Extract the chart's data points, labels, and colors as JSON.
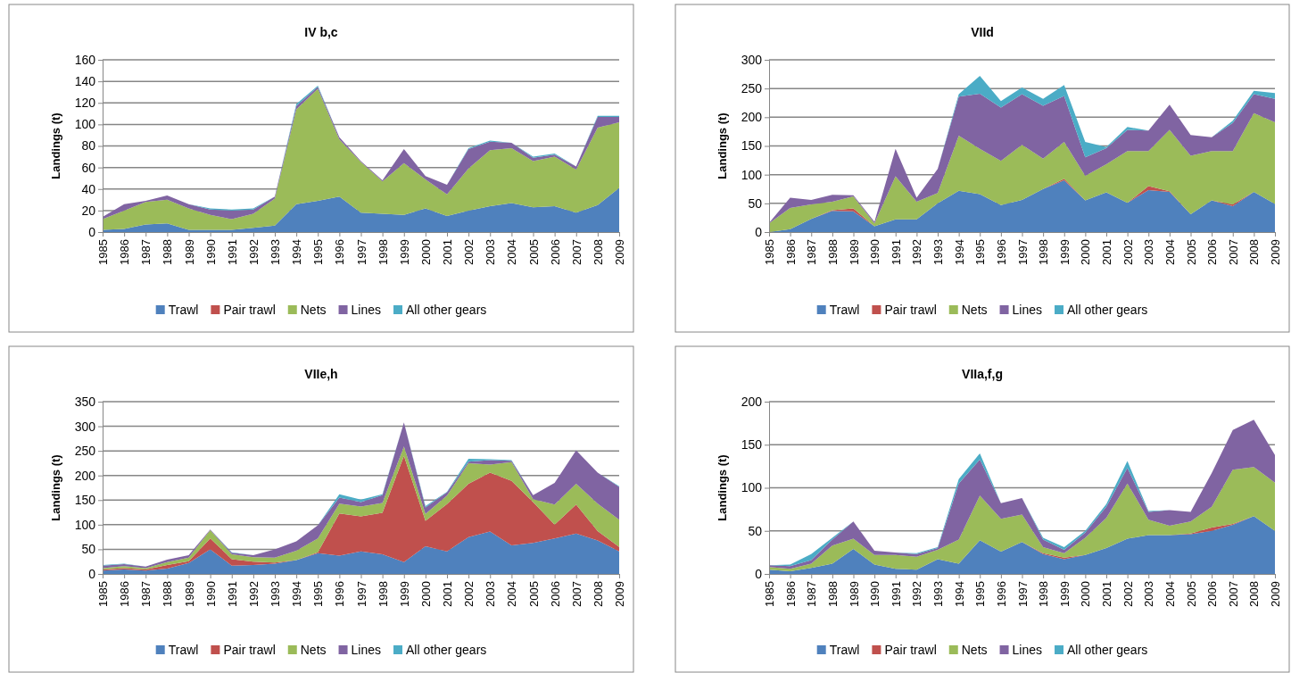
{
  "chart_data": [
    {
      "type": "area",
      "stacked": true,
      "title": "IV b,c",
      "ylabel": "Landings (t)",
      "legend": "bottom",
      "grid": "y",
      "ylim": [
        0,
        160
      ],
      "yticks": [
        0,
        20,
        40,
        60,
        80,
        100,
        120,
        140,
        160
      ],
      "categories": [
        "1985",
        "1986",
        "1987",
        "1988",
        "1989",
        "1990",
        "1991",
        "1992",
        "1993",
        "1994",
        "1995",
        "1996",
        "1997",
        "1998",
        "1999",
        "2000",
        "2001",
        "2002",
        "2003",
        "2004",
        "2005",
        "2006",
        "2007",
        "2008",
        "2009"
      ],
      "series": [
        {
          "name": "Trawl",
          "color": "#4f81bd",
          "values": [
            2,
            3,
            7,
            8,
            2,
            2,
            2,
            4,
            6,
            26,
            29,
            33,
            18,
            17,
            16,
            22,
            15,
            20,
            24,
            27,
            23,
            24,
            18,
            25,
            41
          ]
        },
        {
          "name": "Pair trawl",
          "color": "#c0504d",
          "values": [
            null,
            null,
            null,
            null,
            null,
            null,
            null,
            null,
            null,
            null,
            null,
            null,
            null,
            null,
            null,
            null,
            null,
            null,
            null,
            null,
            null,
            null,
            null,
            null,
            null
          ]
        },
        {
          "name": "Nets",
          "color": "#9bbb59",
          "values": [
            10,
            17,
            21,
            22,
            20,
            14,
            10,
            13,
            25,
            88,
            104,
            53,
            47,
            30,
            48,
            27,
            20,
            39,
            52,
            51,
            43,
            46,
            40,
            72,
            61
          ]
        },
        {
          "name": "Lines",
          "color": "#8064a2",
          "values": [
            2,
            6,
            1,
            4,
            4,
            5,
            8,
            4,
            2,
            3,
            2,
            2,
            1,
            1,
            13,
            3,
            9,
            18,
            8,
            5,
            3,
            2,
            3,
            10,
            5
          ]
        },
        {
          "name": "All other gears",
          "color": "#4bacc6",
          "values": [
            0,
            0,
            0,
            0,
            0,
            1,
            1,
            1,
            0,
            2,
            1,
            0,
            0,
            0,
            0,
            0,
            0,
            1,
            1,
            0,
            1,
            1,
            0,
            1,
            1
          ]
        }
      ]
    },
    {
      "type": "area",
      "stacked": true,
      "title": "VIId",
      "ylabel": "Landings (t)",
      "legend": "bottom",
      "grid": "y",
      "ylim": [
        0,
        300
      ],
      "yticks": [
        0,
        50,
        100,
        150,
        200,
        250,
        300
      ],
      "categories": [
        "1985",
        "1986",
        "1987",
        "1988",
        "1989",
        "1990",
        "1991",
        "1992",
        "1993",
        "1994",
        "1995",
        "1996",
        "1997",
        "1998",
        "1999",
        "2000",
        "2001",
        "2002",
        "2003",
        "2004",
        "2005",
        "2006",
        "2007",
        "2008",
        "2009"
      ],
      "series": [
        {
          "name": "Trawl",
          "color": "#4f81bd",
          "values": [
            0,
            5,
            23,
            37,
            36,
            10,
            22,
            22,
            50,
            72,
            66,
            47,
            56,
            75,
            90,
            55,
            69,
            51,
            73,
            70,
            31,
            55,
            45,
            70,
            49
          ]
        },
        {
          "name": "Pair trawl",
          "color": "#c0504d",
          "values": [
            0,
            0,
            0,
            1,
            5,
            0,
            0,
            0,
            0,
            0,
            0,
            0,
            0,
            0,
            3,
            0,
            0,
            0,
            7,
            1,
            0,
            0,
            3,
            0,
            0
          ]
        },
        {
          "name": "Nets",
          "color": "#9bbb59",
          "values": [
            15,
            37,
            25,
            15,
            21,
            5,
            75,
            31,
            18,
            96,
            79,
            77,
            96,
            53,
            64,
            43,
            49,
            90,
            61,
            107,
            102,
            86,
            93,
            137,
            142
          ]
        },
        {
          "name": "Lines",
          "color": "#8064a2",
          "values": [
            1,
            18,
            8,
            12,
            2,
            3,
            48,
            7,
            42,
            68,
            96,
            93,
            88,
            92,
            80,
            32,
            28,
            37,
            36,
            44,
            36,
            24,
            49,
            33,
            41
          ]
        },
        {
          "name": "All other gears",
          "color": "#4bacc6",
          "values": [
            0,
            0,
            0,
            0,
            0,
            0,
            0,
            0,
            0,
            4,
            31,
            11,
            12,
            12,
            19,
            27,
            2,
            5,
            0,
            0,
            0,
            0,
            4,
            6,
            10
          ]
        }
      ]
    },
    {
      "type": "area",
      "stacked": true,
      "title": "VIIe,h",
      "ylabel": "Landings (t)",
      "legend": "bottom",
      "grid": "y",
      "ylim": [
        0,
        350
      ],
      "yticks": [
        0,
        50,
        100,
        150,
        200,
        250,
        300,
        350
      ],
      "categories": [
        "1985",
        "1986",
        "1987",
        "1988",
        "1989",
        "1990",
        "1991",
        "1992",
        "1993",
        "1994",
        "1995",
        "1996",
        "1997",
        "1998",
        "1999",
        "2000",
        "2001",
        "2002",
        "2003",
        "2004",
        "2005",
        "2006",
        "2007",
        "2008",
        "2009"
      ],
      "series": [
        {
          "name": "Trawl",
          "color": "#4f81bd",
          "values": [
            7,
            9,
            7,
            11,
            22,
            50,
            17,
            18,
            21,
            28,
            42,
            37,
            46,
            40,
            24,
            56,
            46,
            75,
            86,
            58,
            63,
            72,
            82,
            68,
            46
          ]
        },
        {
          "name": "Pair trawl",
          "color": "#c0504d",
          "values": [
            2,
            3,
            2,
            7,
            4,
            22,
            13,
            7,
            2,
            0,
            2,
            86,
            71,
            84,
            216,
            52,
            96,
            108,
            120,
            131,
            83,
            28,
            59,
            19,
            9
          ]
        },
        {
          "name": "Nets",
          "color": "#9bbb59",
          "values": [
            3,
            4,
            3,
            6,
            7,
            17,
            10,
            9,
            10,
            19,
            28,
            20,
            20,
            20,
            19,
            14,
            17,
            42,
            16,
            38,
            6,
            41,
            42,
            56,
            55
          ]
        },
        {
          "name": "Lines",
          "color": "#8064a2",
          "values": [
            5,
            4,
            3,
            5,
            5,
            1,
            3,
            4,
            17,
            19,
            27,
            12,
            9,
            16,
            49,
            13,
            7,
            3,
            9,
            3,
            8,
            44,
            68,
            63,
            67
          ]
        },
        {
          "name": "All other gears",
          "color": "#4bacc6",
          "values": [
            1,
            1,
            0,
            0,
            0,
            0,
            1,
            0,
            0,
            0,
            0,
            7,
            5,
            2,
            0,
            3,
            1,
            6,
            2,
            1,
            0,
            0,
            0,
            0,
            1
          ]
        }
      ]
    },
    {
      "type": "area",
      "stacked": true,
      "title": "VIIa,f,g",
      "ylabel": "Landings (t)",
      "legend": "bottom",
      "grid": "y",
      "ylim": [
        0,
        200
      ],
      "yticks": [
        0,
        50,
        100,
        150,
        200
      ],
      "categories": [
        "1985",
        "1986",
        "1987",
        "1988",
        "1989",
        "1990",
        "1991",
        "1992",
        "1993",
        "1994",
        "1995",
        "1996",
        "1997",
        "1998",
        "1999",
        "2000",
        "2001",
        "2002",
        "2003",
        "2004",
        "2005",
        "2006",
        "2007",
        "2008",
        "2009"
      ],
      "series": [
        {
          "name": "Trawl",
          "color": "#4f81bd",
          "values": [
            5,
            3,
            7,
            12,
            29,
            11,
            6,
            5,
            17,
            12,
            39,
            26,
            37,
            23,
            17,
            22,
            30,
            41,
            45,
            45,
            46,
            50,
            57,
            67,
            50
          ]
        },
        {
          "name": "Pair trawl",
          "color": "#c0504d",
          "values": [
            0,
            0,
            0,
            0,
            0,
            0,
            0,
            0,
            0,
            0,
            0,
            0,
            0,
            1,
            2,
            0,
            0,
            0,
            0,
            0,
            1,
            4,
            1,
            0,
            0
          ]
        },
        {
          "name": "Nets",
          "color": "#9bbb59",
          "values": [
            3,
            3,
            5,
            21,
            12,
            11,
            16,
            15,
            11,
            28,
            52,
            38,
            32,
            7,
            5,
            20,
            35,
            64,
            18,
            11,
            14,
            24,
            63,
            57,
            56
          ]
        },
        {
          "name": "Lines",
          "color": "#8064a2",
          "values": [
            2,
            3,
            4,
            7,
            20,
            5,
            3,
            3,
            2,
            65,
            42,
            18,
            19,
            9,
            4,
            6,
            13,
            18,
            9,
            18,
            11,
            39,
            46,
            55,
            32
          ]
        },
        {
          "name": "All other gears",
          "color": "#4bacc6",
          "values": [
            0,
            2,
            7,
            2,
            0,
            0,
            0,
            1,
            1,
            5,
            7,
            0,
            0,
            2,
            3,
            2,
            3,
            8,
            1,
            0,
            0,
            0,
            0,
            0,
            0
          ]
        }
      ]
    }
  ]
}
